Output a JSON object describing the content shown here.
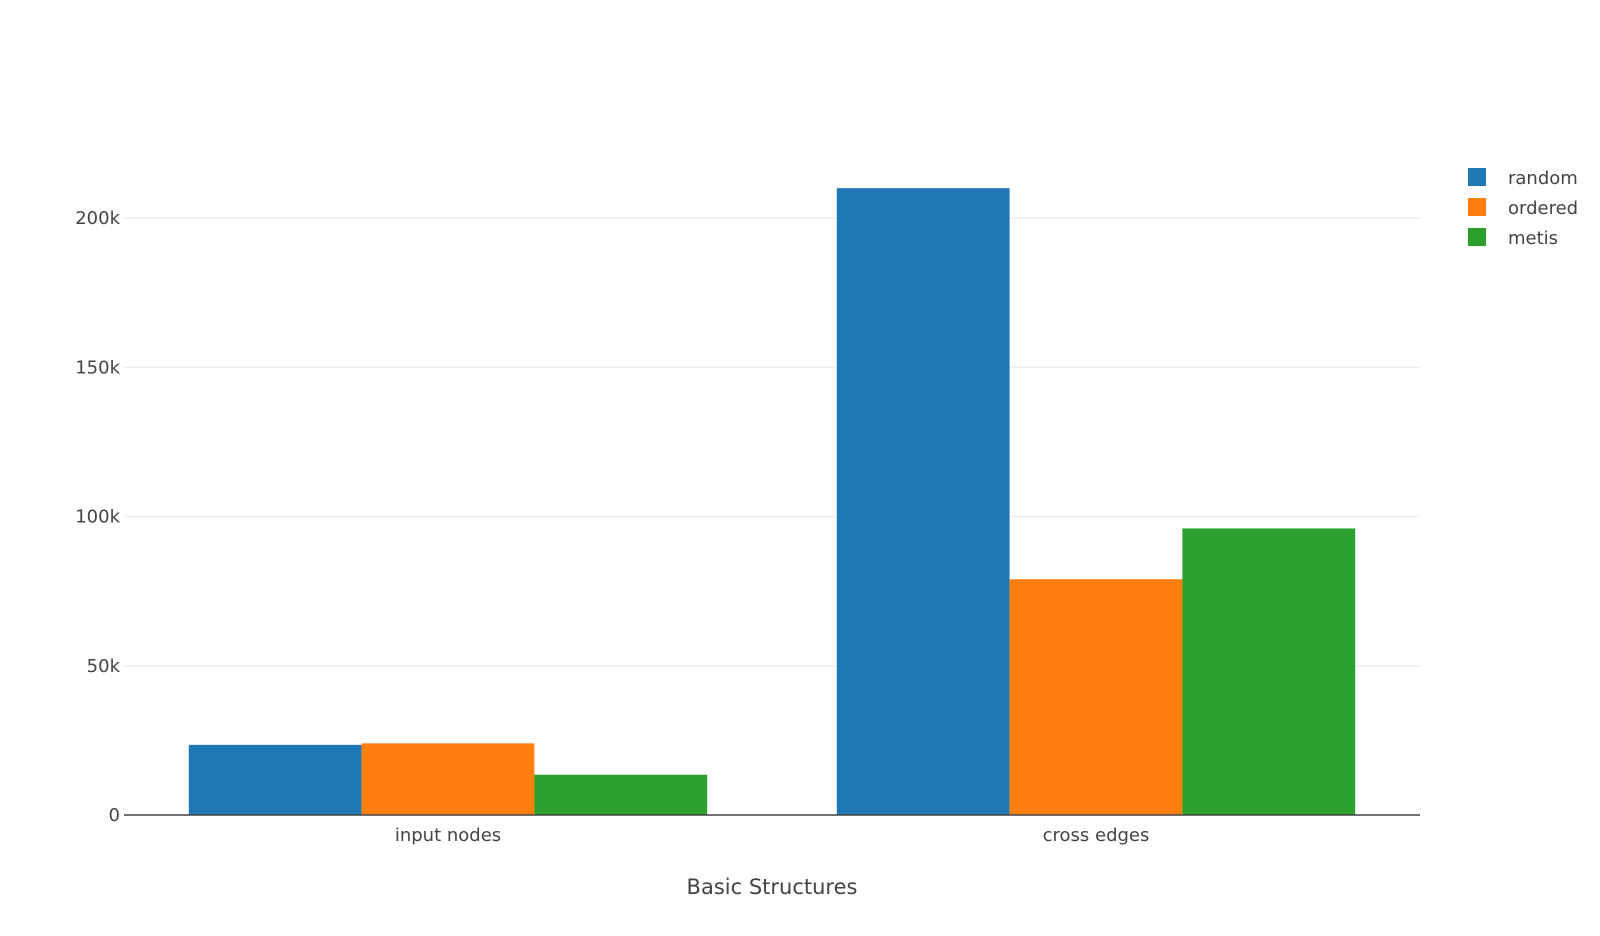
{
  "chart_data": {
    "type": "bar",
    "categories": [
      "input nodes",
      "cross edges"
    ],
    "series": [
      {
        "name": "random",
        "color": "#1f77b4",
        "values": [
          23500,
          210000
        ]
      },
      {
        "name": "ordered",
        "color": "#ff7f0e",
        "values": [
          24000,
          79000
        ]
      },
      {
        "name": "metis",
        "color": "#2ca02c",
        "values": [
          13500,
          96000
        ]
      }
    ],
    "title": "",
    "xlabel": "Basic Structures",
    "ylabel": "",
    "ylim": [
      0,
      220000
    ],
    "yticks": [
      0,
      50000,
      100000,
      150000,
      200000
    ],
    "ytick_labels": [
      "0",
      "50k",
      "100k",
      "150k",
      "200k"
    ],
    "grid": true,
    "legend_position": "top-right"
  }
}
